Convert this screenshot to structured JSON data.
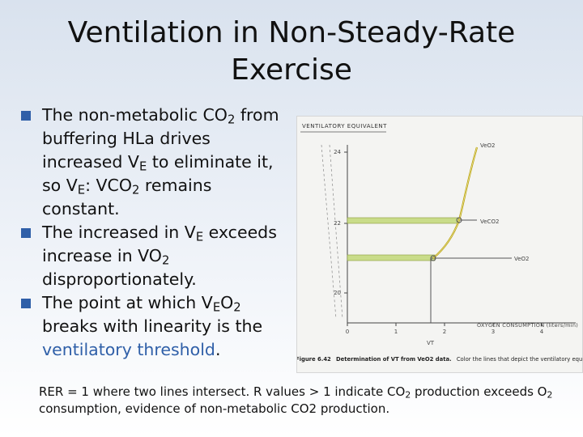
{
  "slide": {
    "title_line1": "Ventilation in Non-Steady-Rate",
    "title_line2": "Exercise",
    "bullets": [
      {
        "p1": "The non-metabolic CO",
        "s1": "2",
        "p2": " from buffering HLa drives increased V",
        "s2": "E",
        "p3": " to eliminate it, so V",
        "s3": "E",
        "p4": ": VCO",
        "s4": "2",
        "p5": " remains constant."
      },
      {
        "p1": "The increased in V",
        "s1": "E",
        "p2": " exceeds increase in VO",
        "s2": "2",
        "p3": " disproportionately."
      },
      {
        "p1": "The point at which V",
        "s1": "E",
        "p2": "O",
        "s2": "2",
        "p3": " breaks with linearity is the ",
        "highlight": "ventilatory threshold",
        "p4": "."
      }
    ],
    "footer": {
      "p1": "RER = 1 where two lines intersect. R values > 1 indicate CO",
      "s1": "2",
      "p2": " production exceeds O",
      "s2": "2",
      "p3": " consumption, evidence of non-metabolic CO2 production."
    },
    "colors": {
      "bullet": "#2f5fa8",
      "accent": "#2f5fa8",
      "highlight_band": "#c9dc8a",
      "curve": "#b8a000"
    }
  },
  "figure": {
    "y_axis_label": "VENTILATORY EQUIVALENT",
    "y_ticks": [
      "24",
      "22",
      "20"
    ],
    "x_axis_label": "OXYGEN CONSUMPTION (liters/min)",
    "x_ticks": [
      "0",
      "1",
      "2",
      "3",
      "4"
    ],
    "curve_labels": {
      "ve_o2_top": "VeO2",
      "ve_co2": "VeCO2",
      "ve_o2_right": "VeO2",
      "vt": "VT"
    },
    "caption_bold": "Figure 6.42",
    "caption_title": "Determination of VT from VeO2 data.",
    "caption_text": "Color the lines that depict the ventilatory equivalents for oxygen"
  }
}
